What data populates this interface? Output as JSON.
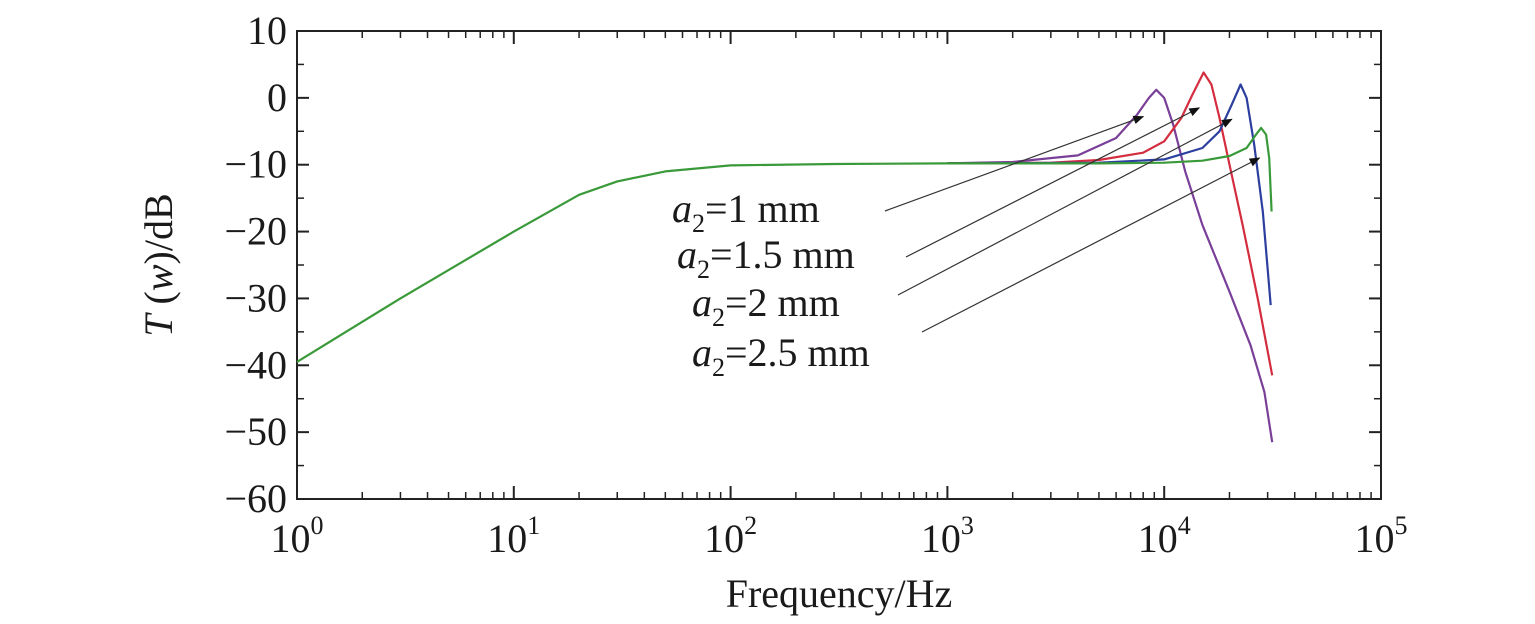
{
  "chart_data": {
    "type": "line",
    "xscale": "log",
    "xlim": [
      1,
      100000
    ],
    "ylim": [
      -60,
      10
    ],
    "xlabel": "Frequency/Hz",
    "ylabel": "T (w)/dB",
    "xticks": [
      {
        "base": "10",
        "exp": "0",
        "value": 1
      },
      {
        "base": "10",
        "exp": "1",
        "value": 10
      },
      {
        "base": "10",
        "exp": "2",
        "value": 100
      },
      {
        "base": "10",
        "exp": "3",
        "value": 1000
      },
      {
        "base": "10",
        "exp": "4",
        "value": 10000
      },
      {
        "base": "10",
        "exp": "5",
        "value": 100000
      }
    ],
    "yticks": [
      {
        "label": "10",
        "value": 10
      },
      {
        "label": "0",
        "value": 0
      },
      {
        "label": "−10",
        "value": -10
      },
      {
        "label": "−20",
        "value": -20
      },
      {
        "label": "−30",
        "value": -30
      },
      {
        "label": "−40",
        "value": -40
      },
      {
        "label": "−50",
        "value": -50
      },
      {
        "label": "−60",
        "value": -60
      }
    ],
    "grid": false,
    "series": [
      {
        "label_var": "a",
        "label_sub": "2",
        "label_rest": "=1 mm",
        "color": "#7a3f98",
        "points": [
          [
            1000,
            -9.8
          ],
          [
            2000,
            -9.6
          ],
          [
            4000,
            -8.6
          ],
          [
            6000,
            -6
          ],
          [
            7500,
            -2.5
          ],
          [
            8500,
            0
          ],
          [
            9200,
            1.2
          ],
          [
            10000,
            0
          ],
          [
            11000,
            -4
          ],
          [
            12500,
            -11
          ],
          [
            15000,
            -19
          ],
          [
            20000,
            -29
          ],
          [
            25000,
            -37
          ],
          [
            29000,
            -44
          ],
          [
            31500,
            -51.5
          ]
        ]
      },
      {
        "label_var": "a",
        "label_sub": "2",
        "label_rest": "=1.5 mm",
        "color": "#d42d3f",
        "points": [
          [
            1000,
            -9.8
          ],
          [
            3000,
            -9.7
          ],
          [
            5000,
            -9.3
          ],
          [
            8000,
            -8.2
          ],
          [
            10000,
            -6.5
          ],
          [
            12000,
            -3
          ],
          [
            13500,
            0.5
          ],
          [
            15200,
            3.8
          ],
          [
            16500,
            2
          ],
          [
            18000,
            -3
          ],
          [
            20000,
            -10
          ],
          [
            23000,
            -19
          ],
          [
            27000,
            -30
          ],
          [
            31500,
            -41.5
          ]
        ]
      },
      {
        "label_var": "a",
        "label_sub": "2",
        "label_rest": "=2 mm",
        "color": "#2c3f9e",
        "points": [
          [
            1000,
            -9.8
          ],
          [
            5000,
            -9.7
          ],
          [
            10000,
            -9.2
          ],
          [
            15000,
            -7.5
          ],
          [
            18000,
            -5
          ],
          [
            20500,
            -1
          ],
          [
            22500,
            2
          ],
          [
            24000,
            0
          ],
          [
            26000,
            -7
          ],
          [
            28500,
            -17
          ],
          [
            31000,
            -31
          ]
        ]
      },
      {
        "label_var": "a",
        "label_sub": "2",
        "label_rest": "=2.5 mm",
        "color": "#3a9a3a",
        "points": [
          [
            1,
            -39.5
          ],
          [
            3,
            -30
          ],
          [
            10,
            -20
          ],
          [
            20,
            -14.5
          ],
          [
            30,
            -12.5
          ],
          [
            50,
            -11
          ],
          [
            100,
            -10.1
          ],
          [
            300,
            -9.9
          ],
          [
            1000,
            -9.8
          ],
          [
            5000,
            -9.8
          ],
          [
            10000,
            -9.7
          ],
          [
            15000,
            -9.4
          ],
          [
            20000,
            -8.7
          ],
          [
            24000,
            -7.5
          ],
          [
            26500,
            -5.5
          ],
          [
            28000,
            -4.5
          ],
          [
            29500,
            -5.5
          ],
          [
            30500,
            -9
          ],
          [
            31300,
            -17
          ]
        ]
      }
    ]
  }
}
